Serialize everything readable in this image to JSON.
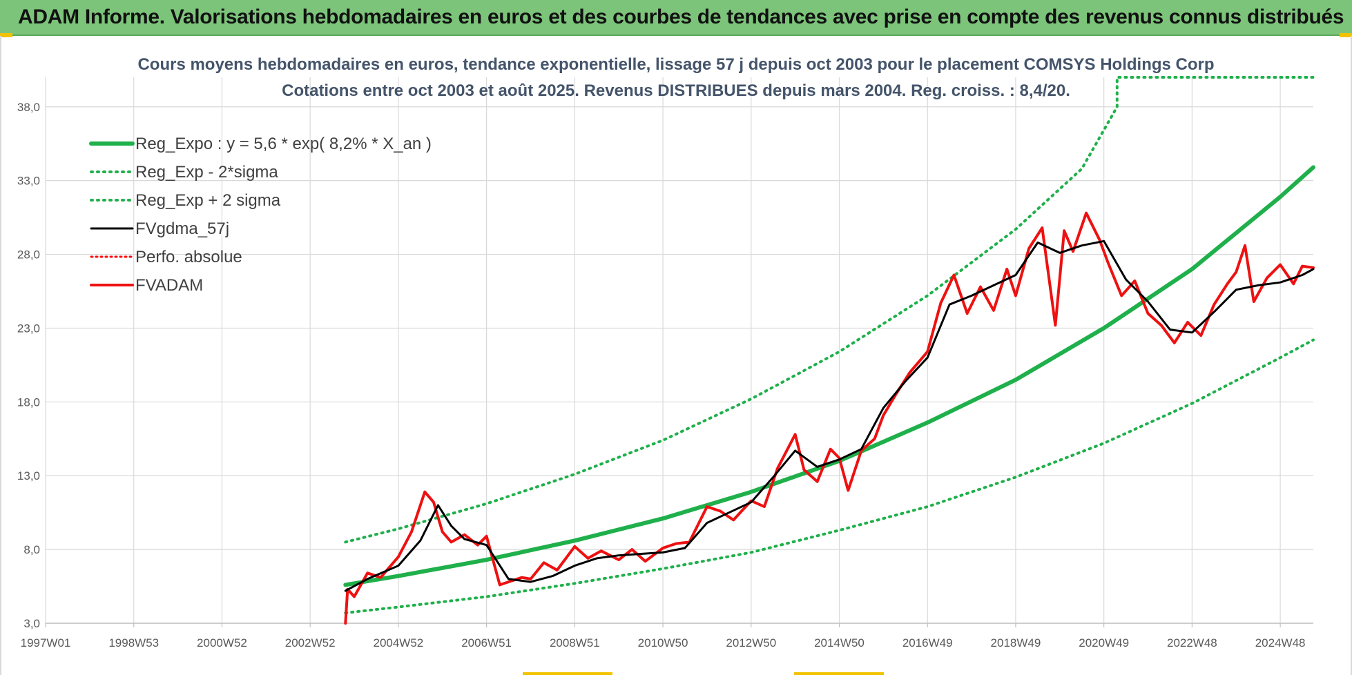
{
  "banner": {
    "title": "ADAM Informe. Valorisations hebdomadaires en euros et des courbes de tendances avec prise en compte des revenus connus distribués"
  },
  "colors": {
    "banner": "#7cc47a",
    "regression": "#1fb04b",
    "sigma_band": "#1fb04b",
    "smoothed": "#000000",
    "perfo": "#ff0000",
    "fvadam": "#ee1111",
    "title": "#44546a"
  },
  "chart_data": {
    "type": "line",
    "title": "Cours moyens hebdomadaires en euros, tendance exponentielle, lissage 57 j depuis oct 2003 pour le placement COMSYS Holdings Corp",
    "subtitle": "Cotations entre oct 2003 et août 2025. Revenus DISTRIBUES depuis mars 2004. Reg. croiss. : 8,4/20.",
    "xlabel": "",
    "ylabel": "",
    "x_tick_labels": [
      "1997W01",
      "1998W53",
      "2000W52",
      "2002W52",
      "2004W52",
      "2006W51",
      "2008W51",
      "2010W50",
      "2012W50",
      "2014W50",
      "2016W49",
      "2018W49",
      "2020W49",
      "2022W48",
      "2024W48"
    ],
    "x_ticks": [
      1997.0,
      1999.0,
      2001.0,
      2003.0,
      2005.0,
      2007.0,
      2009.0,
      2011.0,
      2013.0,
      2015.0,
      2017.0,
      2019.0,
      2021.0,
      2023.0,
      2025.0
    ],
    "xlim": [
      1997.0,
      2025.75
    ],
    "ylim": [
      3.0,
      40.0
    ],
    "y_ticks": [
      3.0,
      8.0,
      13.0,
      18.0,
      23.0,
      28.0,
      33.0,
      38.0
    ],
    "y_tick_labels": [
      "3,0",
      "8,0",
      "13,0",
      "18,0",
      "23,0",
      "28,0",
      "33,0",
      "38,0"
    ],
    "grid": true,
    "legend_position": "top-left",
    "legend": [
      {
        "label": "Reg_Expo : y = 5,6 * exp( 8,2% *  X_an )",
        "style": "solid-thick",
        "color": "#1fb04b"
      },
      {
        "label": "Reg_Exp - 2*sigma",
        "style": "dotted",
        "color": "#1fb04b"
      },
      {
        "label": "Reg_Exp + 2 sigma",
        "style": "dotted",
        "color": "#1fb04b"
      },
      {
        "label": "FVgdma_57j",
        "style": "solid",
        "color": "#000000"
      },
      {
        "label": "Perfo. absolue",
        "style": "dotted",
        "color": "#ff0000"
      },
      {
        "label": "FVADAM",
        "style": "solid-thick",
        "color": "#ee1111"
      }
    ],
    "series": [
      {
        "name": "Reg_Expo : y = 5,6 * exp( 8,2% *  X_an )",
        "x": [
          2003.8,
          2005.0,
          2007.0,
          2009.0,
          2011.0,
          2013.0,
          2015.0,
          2017.0,
          2019.0,
          2021.0,
          2023.0,
          2025.0,
          2025.75
        ],
        "y": [
          5.6,
          6.2,
          7.3,
          8.6,
          10.1,
          11.9,
          14.0,
          16.6,
          19.5,
          23.0,
          27.0,
          31.9,
          33.9
        ]
      },
      {
        "name": "Reg_Exp - 2*sigma",
        "x": [
          2003.8,
          2005.0,
          2007.0,
          2009.0,
          2011.0,
          2013.0,
          2015.0,
          2017.0,
          2019.0,
          2021.0,
          2023.0,
          2025.0,
          2025.75
        ],
        "y": [
          3.7,
          4.1,
          4.8,
          5.7,
          6.7,
          7.8,
          9.3,
          10.9,
          12.9,
          15.2,
          17.9,
          21.0,
          22.2
        ]
      },
      {
        "name": "Reg_Exp + 2 sigma",
        "x": [
          2003.8,
          2005.0,
          2007.0,
          2009.0,
          2011.0,
          2013.0,
          2015.0,
          2017.0,
          2019.0,
          2020.5,
          2021.3,
          2021.3,
          2025.75
        ],
        "y": [
          8.5,
          9.4,
          11.1,
          13.1,
          15.4,
          18.2,
          21.4,
          25.2,
          29.7,
          33.8,
          38.0,
          40.0,
          40.0
        ]
      },
      {
        "name": "FVgdma_57j",
        "x": [
          2003.8,
          2004.3,
          2005.0,
          2005.5,
          2005.9,
          2006.2,
          2006.5,
          2007.0,
          2007.5,
          2008.0,
          2008.5,
          2009.0,
          2009.5,
          2010.0,
          2010.5,
          2011.0,
          2011.5,
          2012.0,
          2012.5,
          2013.0,
          2013.5,
          2014.0,
          2014.5,
          2015.0,
          2015.5,
          2016.0,
          2016.5,
          2017.0,
          2017.5,
          2018.0,
          2018.5,
          2019.0,
          2019.5,
          2020.0,
          2020.5,
          2021.0,
          2021.5,
          2022.0,
          2022.5,
          2023.0,
          2023.5,
          2024.0,
          2024.5,
          2025.0,
          2025.5,
          2025.75
        ],
        "y": [
          5.2,
          6.0,
          6.9,
          8.6,
          11.0,
          9.6,
          8.7,
          8.3,
          6.0,
          5.8,
          6.2,
          6.9,
          7.4,
          7.6,
          7.7,
          7.8,
          8.1,
          9.8,
          10.5,
          11.2,
          12.9,
          14.7,
          13.6,
          14.1,
          14.8,
          17.6,
          19.4,
          21.0,
          24.6,
          25.2,
          25.9,
          26.6,
          28.8,
          28.1,
          28.6,
          28.9,
          26.3,
          24.8,
          22.9,
          22.7,
          24.1,
          25.6,
          25.9,
          26.1,
          26.6,
          27.0
        ]
      },
      {
        "name": "FVADAM",
        "x": [
          2003.8,
          2003.85,
          2004.0,
          2004.3,
          2004.6,
          2005.0,
          2005.3,
          2005.6,
          2005.8,
          2006.0,
          2006.2,
          2006.5,
          2006.8,
          2007.0,
          2007.3,
          2007.5,
          2007.8,
          2008.0,
          2008.3,
          2008.6,
          2009.0,
          2009.3,
          2009.6,
          2010.0,
          2010.3,
          2010.6,
          2011.0,
          2011.3,
          2011.6,
          2012.0,
          2012.3,
          2012.6,
          2013.0,
          2013.3,
          2013.6,
          2014.0,
          2014.2,
          2014.5,
          2014.8,
          2015.0,
          2015.2,
          2015.5,
          2015.8,
          2016.0,
          2016.3,
          2016.6,
          2017.0,
          2017.3,
          2017.6,
          2017.9,
          2018.2,
          2018.5,
          2018.8,
          2019.0,
          2019.3,
          2019.6,
          2019.9,
          2020.1,
          2020.3,
          2020.6,
          2020.9,
          2021.1,
          2021.4,
          2021.7,
          2022.0,
          2022.3,
          2022.6,
          2022.9,
          2023.2,
          2023.5,
          2023.8,
          2024.0,
          2024.2,
          2024.4,
          2024.7,
          2025.0,
          2025.3,
          2025.5,
          2025.75
        ],
        "y": [
          3.0,
          5.3,
          4.8,
          6.4,
          6.1,
          7.5,
          9.2,
          11.9,
          11.2,
          9.2,
          8.5,
          9.0,
          8.3,
          8.9,
          5.6,
          5.8,
          6.1,
          6.0,
          7.1,
          6.6,
          8.2,
          7.4,
          7.9,
          7.3,
          8.0,
          7.2,
          8.1,
          8.4,
          8.5,
          10.9,
          10.6,
          10.0,
          11.3,
          10.9,
          13.5,
          15.8,
          13.4,
          12.6,
          14.8,
          14.2,
          12.0,
          14.7,
          15.5,
          17.1,
          18.6,
          20.0,
          21.4,
          24.7,
          26.6,
          24.0,
          25.8,
          24.2,
          27.0,
          25.2,
          28.4,
          29.8,
          23.2,
          29.6,
          28.2,
          30.8,
          29.0,
          27.4,
          25.2,
          26.2,
          24.0,
          23.2,
          22.0,
          23.4,
          22.5,
          24.6,
          26.0,
          26.8,
          28.6,
          24.8,
          26.4,
          27.3,
          26.0,
          27.2,
          27.1
        ]
      }
    ]
  }
}
